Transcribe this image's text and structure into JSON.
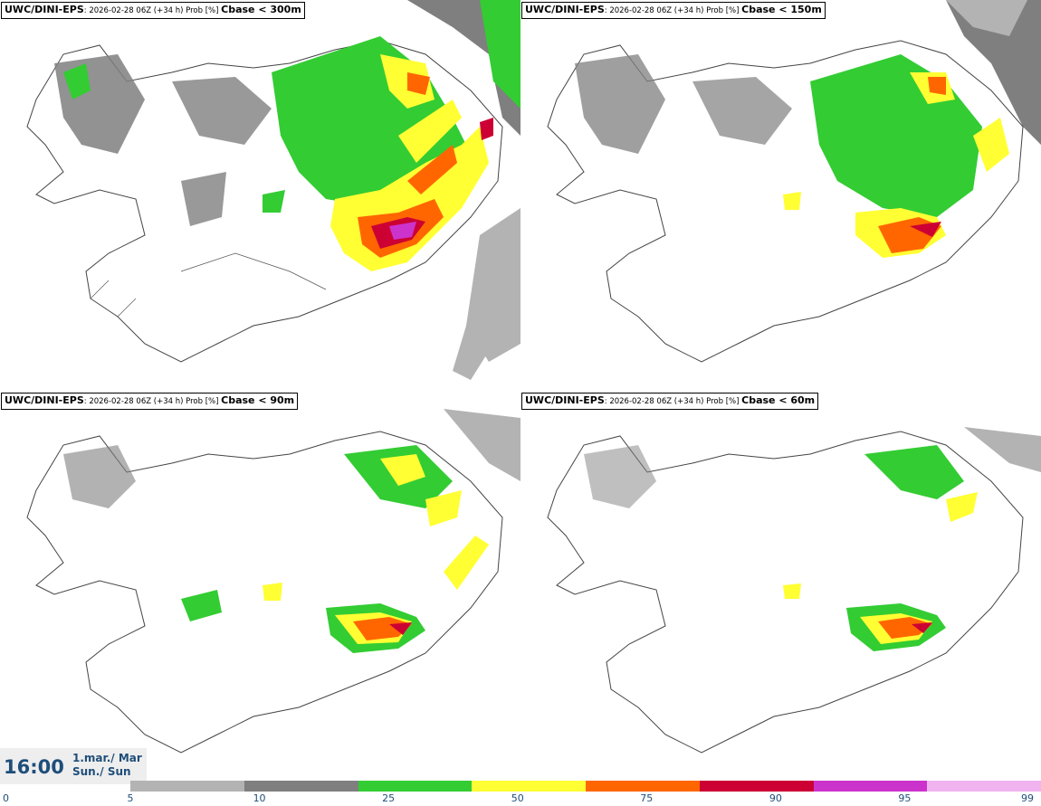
{
  "panels": [
    {
      "model": "UWC/DINI-EPS",
      "meta": ": 2026-02-28 06Z (+34 h) Prob [%] ",
      "param": "Cbase < 300m"
    },
    {
      "model": "UWC/DINI-EPS",
      "meta": ": 2026-02-28 06Z (+34 h) Prob [%] ",
      "param": "Cbase < 150m"
    },
    {
      "model": "UWC/DINI-EPS",
      "meta": ": 2026-02-28 06Z (+34 h) Prob [%] ",
      "param": "Cbase < 90m"
    },
    {
      "model": "UWC/DINI-EPS",
      "meta": ": 2026-02-28 06Z (+34 h) Prob [%] ",
      "param": "Cbase < 60m"
    }
  ],
  "time": {
    "clock": "16:00",
    "date_line1": "1.mar./ Mar",
    "date_line2": "Sun./ Sun"
  },
  "colorbar": {
    "ticks": [
      "0",
      "5",
      "10",
      "25",
      "50",
      "75",
      "90",
      "95",
      "99"
    ],
    "colors": [
      "#b3b3b3",
      "#7f7f7f",
      "#33cc33",
      "#ffff33",
      "#ff6600",
      "#cc0033",
      "#cc33cc",
      "#f0b3f0"
    ]
  }
}
